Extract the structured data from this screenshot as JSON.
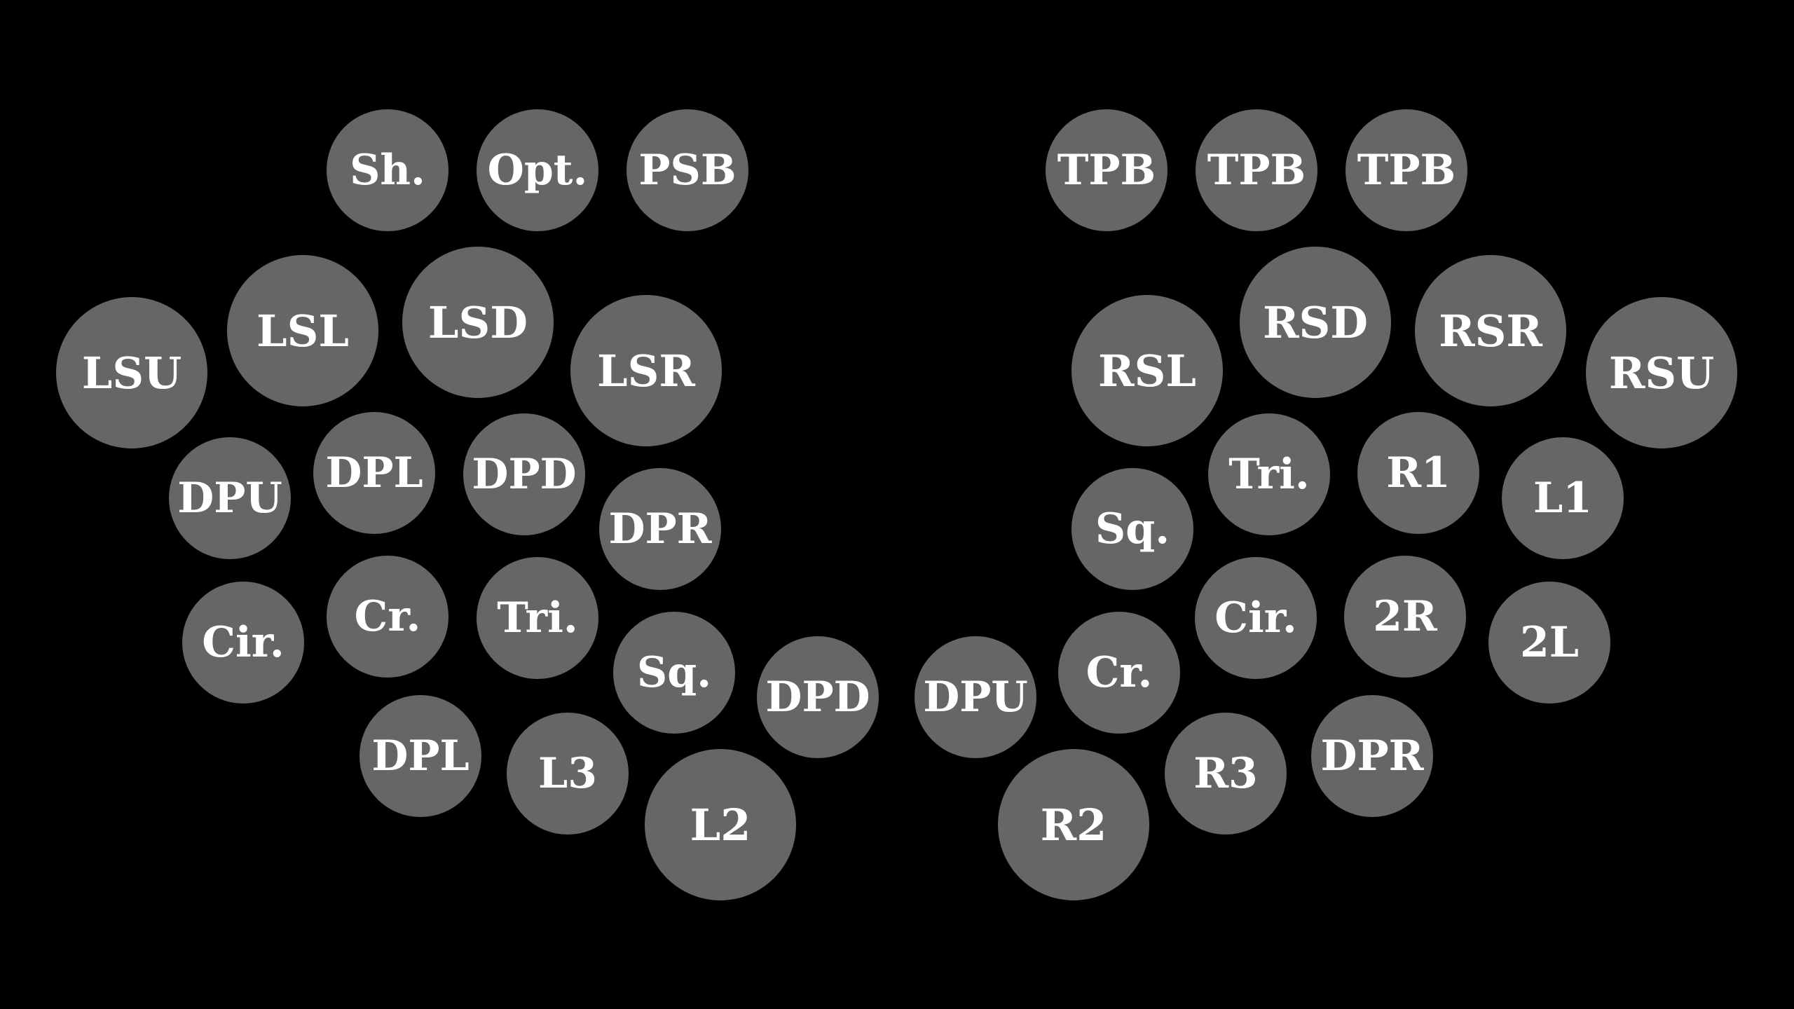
{
  "colors": {
    "background": "#000000",
    "button": "#666666",
    "label": "#ffffff"
  },
  "left": {
    "top_row": [
      "Sh.",
      "Opt.",
      "PSB"
    ],
    "shoulder": [
      "LSU",
      "LSL",
      "LSD",
      "LSR"
    ],
    "dpad_upper": [
      "DPU",
      "DPL",
      "DPD",
      "DPR"
    ],
    "face": [
      "Cir.",
      "Cr.",
      "Tri.",
      "Sq."
    ],
    "lower": [
      "DPD",
      "DPL",
      "L3",
      "L2"
    ]
  },
  "right": {
    "top_row": [
      "TPB",
      "TPB",
      "TPB"
    ],
    "shoulder": [
      "RSL",
      "RSD",
      "RSR",
      "RSU"
    ],
    "face_upper": [
      "Sq.",
      "Tri.",
      "R1",
      "L1"
    ],
    "face_lower": [
      "Cr.",
      "Cir.",
      "2R",
      "2L"
    ],
    "lower": [
      "DPU",
      "R3",
      "DPR",
      "R2"
    ]
  }
}
